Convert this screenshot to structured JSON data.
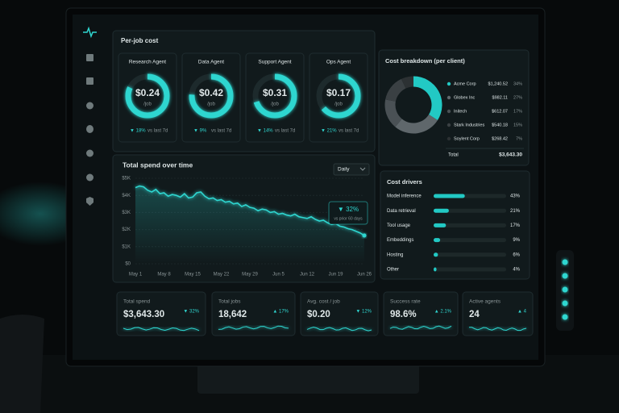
{
  "per_job_cost": {
    "title": "Per-job cost",
    "agents": [
      {
        "name": "Research Agent",
        "value": "$0.24",
        "unit": "/job",
        "change": "▼ 18%",
        "period": "vs last 7d"
      },
      {
        "name": "Data Agent",
        "value": "$0.42",
        "unit": "/job",
        "change": "▼ 9%",
        "period": "vs last 7d"
      },
      {
        "name": "Support Agent",
        "value": "$0.31",
        "unit": "/job",
        "change": "▼ 14%",
        "period": "vs last 7d"
      },
      {
        "name": "Ops Agent",
        "value": "$0.17",
        "unit": "/job",
        "change": "▼ 21%",
        "period": "vs last 7d"
      }
    ]
  },
  "breakdown": {
    "type": "pie",
    "title": "Cost breakdown (per client)",
    "categories": [
      "Acme Corp",
      "Globex Inc",
      "Initech",
      "Stark Industries",
      "Soylent Corp"
    ],
    "amounts": [
      "$1,240.52",
      "$982.11",
      "$612.07",
      "$540.18",
      "$268.42"
    ],
    "values": [
      34,
      27,
      17,
      15,
      7
    ],
    "value_labels": [
      "34%",
      "27%",
      "17%",
      "15%",
      "7%"
    ],
    "colors": [
      "#22c9c4",
      "#5f676b",
      "#4a5155",
      "#3a4043",
      "#2c3133"
    ],
    "total_label": "Total",
    "total": "$3,643.30"
  },
  "spend_chart": {
    "type": "line",
    "title": "Total spend over time",
    "dropdown": "Daily",
    "categories": [
      "May 1",
      null,
      null,
      null,
      null,
      null,
      null,
      "May 8",
      null,
      null,
      null,
      null,
      null,
      null,
      "May 15",
      null,
      null,
      null,
      null,
      null,
      null,
      "May 22",
      null,
      null,
      null,
      null,
      null,
      null,
      "May 29",
      null,
      null,
      null,
      null,
      null,
      null,
      "Jun 5",
      null,
      null,
      null,
      null,
      null,
      null,
      "Jun 12",
      null,
      null,
      null,
      null,
      null,
      null,
      "Jun 19",
      null,
      null,
      null,
      null,
      null,
      null,
      "Jun 26"
    ],
    "values": [
      4450,
      4550,
      4500,
      4300,
      4200,
      4350,
      4100,
      4150,
      3950,
      4050,
      4000,
      3900,
      4100,
      3850,
      3900,
      4150,
      4200,
      3950,
      3800,
      3850,
      3700,
      3750,
      3600,
      3650,
      3500,
      3550,
      3350,
      3450,
      3300,
      3250,
      3100,
      3200,
      3150,
      3000,
      3050,
      2900,
      2950,
      2850,
      2800,
      2900,
      2750,
      2700,
      2650,
      2750,
      2600,
      2500,
      2550,
      2400,
      2300,
      2350,
      2200,
      2150,
      2050,
      2000,
      1900,
      1800,
      1650
    ],
    "color": "#2fd6d0",
    "ylim": [
      0,
      5000
    ],
    "yticks": [
      {
        "value": 0,
        "label": "$0"
      },
      {
        "value": 1000,
        "label": "$1K"
      },
      {
        "value": 2000,
        "label": "$2K"
      },
      {
        "value": 3000,
        "label": "$3K"
      },
      {
        "value": 4000,
        "label": "$4K"
      },
      {
        "value": 5000,
        "label": "$5K"
      }
    ],
    "grid": true,
    "annotation": {
      "change": "▼ 32%",
      "note": "vs prior 60 days"
    }
  },
  "cost_drivers": {
    "type": "bar",
    "title": "Cost drivers",
    "categories": [
      "Model inference",
      "Data retrieval",
      "Tool usage",
      "Embeddings",
      "Hosting",
      "Other"
    ],
    "values": [
      43,
      21,
      17,
      9,
      6,
      4
    ],
    "value_labels": [
      "43%",
      "21%",
      "17%",
      "9%",
      "6%",
      "4%"
    ],
    "color": "#22c9c4"
  },
  "kpis": [
    {
      "title": "Total spend",
      "value": "$3,643.30",
      "change": "▼ 32%"
    },
    {
      "title": "Total jobs",
      "value": "18,642",
      "change": "▲ 17%"
    },
    {
      "title": "Avg. cost / job",
      "value": "$0.20",
      "change": "▼ 12%"
    },
    {
      "title": "Success rate",
      "value": "98.6%",
      "change": "▲ 2.1%"
    },
    {
      "title": "Active agents",
      "value": "24",
      "change": "▲ 4"
    }
  ]
}
